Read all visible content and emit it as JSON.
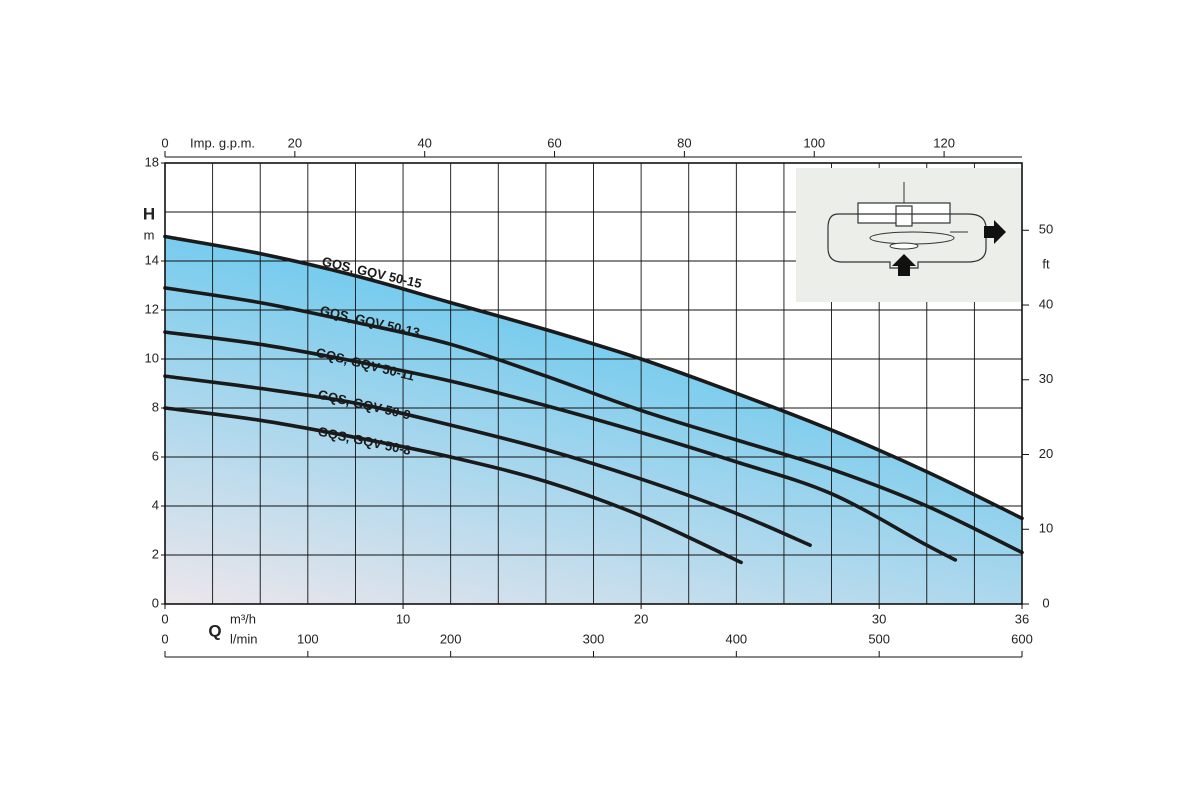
{
  "chart_data": {
    "type": "line",
    "y_label": "H",
    "y_unit": "m",
    "y2_label": "ft",
    "x_label": "Q",
    "x_unit": "m³/h",
    "x3_unit": "l/min",
    "x2_label": "Imp. g.p.m.",
    "xlim": [
      0,
      36
    ],
    "xticks": [
      0,
      10,
      20,
      30,
      36
    ],
    "xgrid": [
      0,
      2,
      4,
      6,
      8,
      10,
      12,
      14,
      16,
      18,
      20,
      22,
      24,
      26,
      28,
      30,
      32,
      34,
      36
    ],
    "ylim": [
      0,
      18
    ],
    "yticks": [
      0,
      2,
      4,
      6,
      8,
      10,
      12,
      14,
      18
    ],
    "ygrid": [
      0,
      2,
      4,
      6,
      8,
      10,
      12,
      14,
      16,
      18
    ],
    "y2lim": [
      0,
      59
    ],
    "y2ticks": [
      0,
      10,
      20,
      30,
      40,
      50
    ],
    "x2lim": [
      0,
      132
    ],
    "x2ticks": [
      0,
      20,
      40,
      60,
      80,
      100,
      120
    ],
    "x3lim": [
      0,
      600
    ],
    "x3ticks": [
      0,
      100,
      200,
      300,
      400,
      500,
      600
    ],
    "grid": true,
    "fill_colors": [
      "#55c4ee",
      "#ece6ec"
    ],
    "series": [
      {
        "name": "GQS, GQV 50-15",
        "color": "#1a1a1a",
        "x": [
          0,
          4,
          8,
          12,
          16,
          20,
          24,
          28,
          32,
          36
        ],
        "values": [
          15,
          14.3,
          13.4,
          12.3,
          11.2,
          10.0,
          8.6,
          7.1,
          5.4,
          3.5
        ]
      },
      {
        "name": "GQS, GQV 50-13",
        "color": "#1a1a1a",
        "x": [
          0,
          4,
          8,
          12,
          16,
          20,
          24,
          28,
          32,
          36
        ],
        "values": [
          12.9,
          12.3,
          11.5,
          10.6,
          9.3,
          7.9,
          6.7,
          5.5,
          4.0,
          2.1
        ]
      },
      {
        "name": "GQS, GQV 50-11",
        "color": "#1a1a1a",
        "x": [
          0,
          4,
          8,
          12,
          16,
          20,
          24,
          28,
          32,
          33.2
        ],
        "values": [
          11.1,
          10.6,
          9.9,
          9.1,
          8.1,
          7.0,
          5.8,
          4.5,
          2.4,
          1.8
        ]
      },
      {
        "name": "GQS, GQV 50-9",
        "color": "#1a1a1a",
        "x": [
          0,
          4,
          8,
          12,
          16,
          20,
          24,
          27.1
        ],
        "values": [
          9.3,
          8.8,
          8.2,
          7.3,
          6.3,
          5.1,
          3.7,
          2.4
        ]
      },
      {
        "name": "GQS, GQV 50-8",
        "color": "#1a1a1a",
        "x": [
          0,
          4,
          8,
          12,
          16,
          20,
          24.2
        ],
        "values": [
          8.0,
          7.5,
          6.8,
          6.0,
          5.0,
          3.6,
          1.7
        ]
      }
    ]
  }
}
